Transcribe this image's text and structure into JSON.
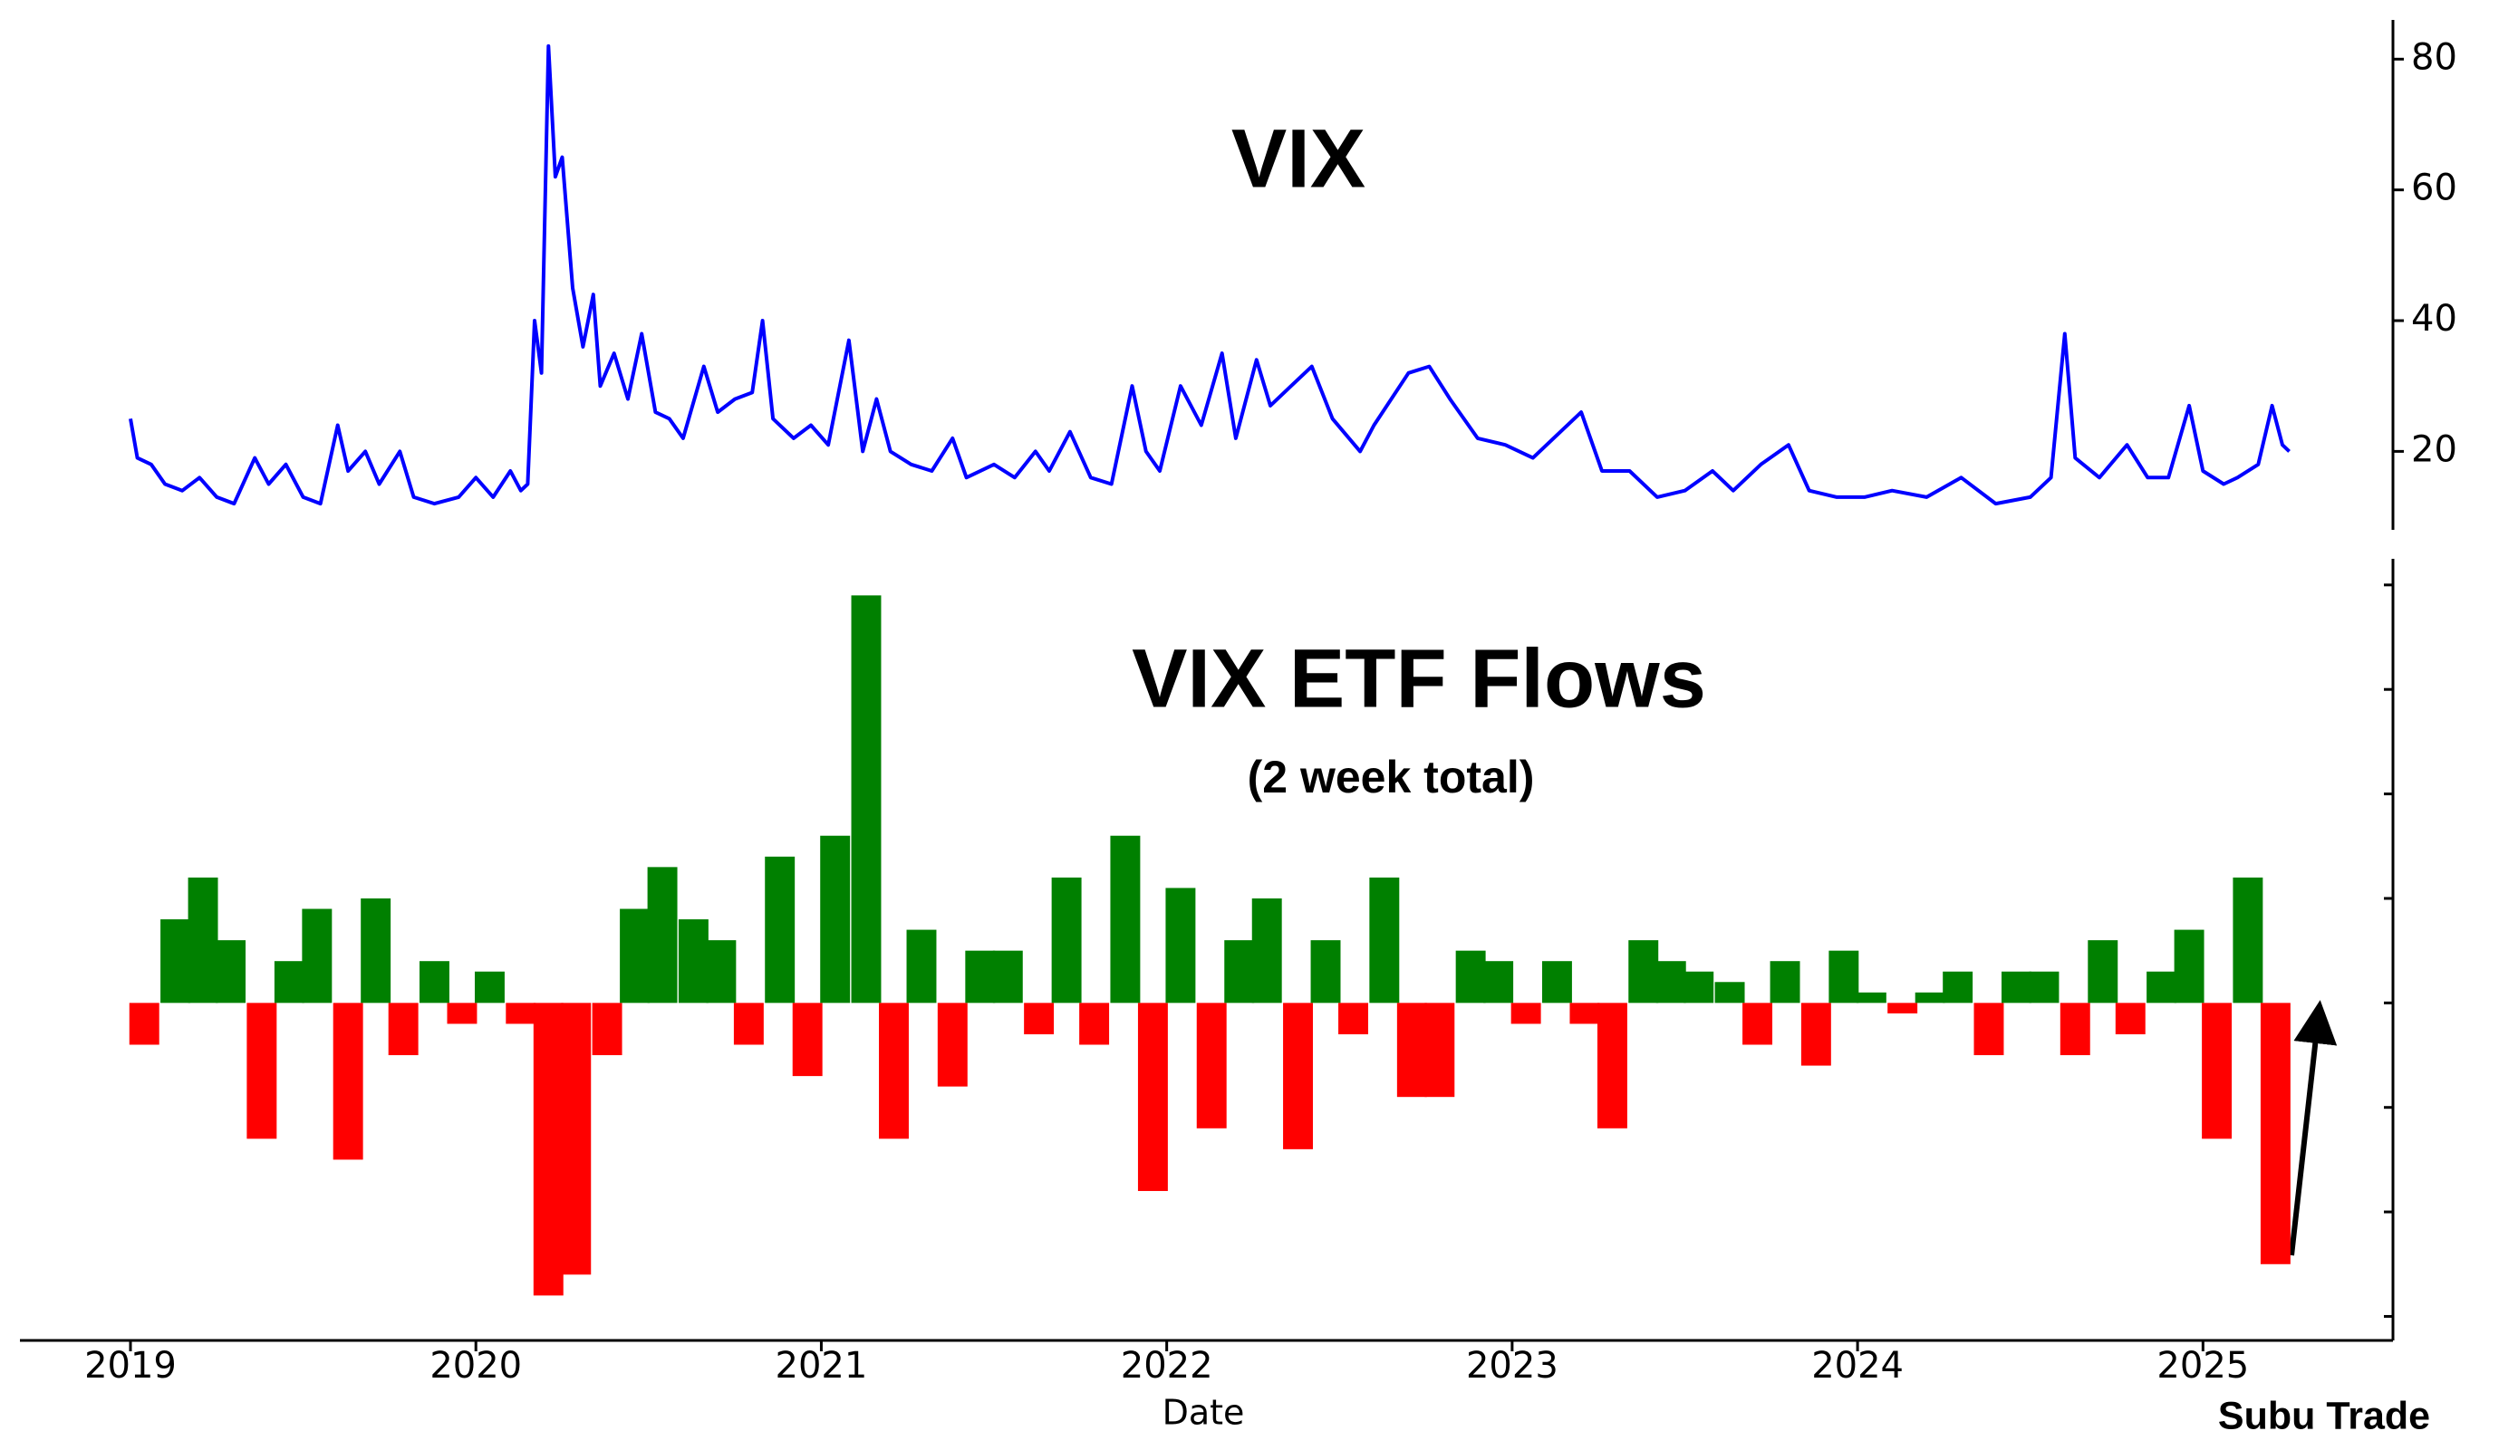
{
  "chart_data": [
    {
      "type": "line",
      "title": "VIX",
      "y_axis_side": "right",
      "xlim": [
        2018.68,
        2025.55
      ],
      "ylim": [
        8,
        86
      ],
      "yticks": [
        20,
        40,
        60,
        80
      ],
      "x": [
        2019.0,
        2019.02,
        2019.06,
        2019.1,
        2019.15,
        2019.2,
        2019.25,
        2019.3,
        2019.36,
        2019.4,
        2019.45,
        2019.5,
        2019.55,
        2019.6,
        2019.63,
        2019.68,
        2019.72,
        2019.78,
        2019.82,
        2019.88,
        2019.95,
        2020.0,
        2020.05,
        2020.1,
        2020.13,
        2020.15,
        2020.17,
        2020.19,
        2020.21,
        2020.23,
        2020.25,
        2020.28,
        2020.31,
        2020.34,
        2020.36,
        2020.4,
        2020.44,
        2020.48,
        2020.52,
        2020.56,
        2020.6,
        2020.66,
        2020.7,
        2020.75,
        2020.8,
        2020.83,
        2020.86,
        2020.92,
        2020.97,
        2021.02,
        2021.08,
        2021.12,
        2021.16,
        2021.2,
        2021.26,
        2021.32,
        2021.38,
        2021.42,
        2021.5,
        2021.56,
        2021.62,
        2021.66,
        2021.72,
        2021.78,
        2021.84,
        2021.9,
        2021.94,
        2021.98,
        2022.04,
        2022.1,
        2022.16,
        2022.2,
        2022.26,
        2022.3,
        2022.36,
        2022.42,
        2022.48,
        2022.56,
        2022.6,
        2022.7,
        2022.76,
        2022.82,
        2022.9,
        2022.98,
        2023.06,
        2023.12,
        2023.2,
        2023.26,
        2023.34,
        2023.42,
        2023.5,
        2023.58,
        2023.64,
        2023.72,
        2023.8,
        2023.86,
        2023.94,
        2024.02,
        2024.1,
        2024.2,
        2024.3,
        2024.4,
        2024.5,
        2024.56,
        2024.6,
        2024.63,
        2024.7,
        2024.78,
        2024.84,
        2024.9,
        2024.96,
        2025.0,
        2025.06,
        2025.1,
        2025.16,
        2025.2,
        2025.23,
        2025.25
      ],
      "series": [
        {
          "name": "VIX",
          "color": "#0000ff",
          "values": [
            25,
            19,
            18,
            15,
            14,
            16,
            13,
            12,
            19,
            15,
            18,
            13,
            12,
            24,
            17,
            20,
            15,
            20,
            13,
            12,
            13,
            16,
            13,
            17,
            14,
            15,
            40,
            32,
            82,
            62,
            65,
            45,
            36,
            44,
            30,
            35,
            28,
            38,
            26,
            25,
            22,
            33,
            26,
            28,
            29,
            40,
            25,
            22,
            24,
            21,
            37,
            20,
            28,
            20,
            18,
            17,
            22,
            16,
            18,
            16,
            20,
            17,
            23,
            16,
            15,
            30,
            20,
            17,
            30,
            24,
            35,
            22,
            34,
            27,
            30,
            33,
            25,
            20,
            24,
            32,
            33,
            28,
            22,
            21,
            19,
            22,
            26,
            17,
            17,
            13,
            14,
            17,
            14,
            18,
            21,
            14,
            13,
            13,
            14,
            13,
            16,
            12,
            13,
            16,
            38,
            19,
            16,
            21,
            16,
            16,
            27,
            17,
            15,
            16,
            18,
            27,
            21,
            20
          ]
        }
      ]
    },
    {
      "type": "bar",
      "title": "VIX ETF Flows",
      "subtitle": "(2 week total)",
      "xlabel": "Date",
      "y_axis_side": "right",
      "positive_color": "#008000",
      "negative_color": "#ff0000",
      "xlim": [
        2018.68,
        2025.55
      ],
      "xticks": [
        2019,
        2020,
        2021,
        2022,
        2023,
        2024,
        2025
      ],
      "ylim": [
        -3.23,
        4.25
      ],
      "yticks": [
        -3,
        -2,
        -1,
        0,
        1,
        2,
        3,
        4
      ],
      "x": [
        2019.04,
        2019.13,
        2019.21,
        2019.29,
        2019.38,
        2019.46,
        2019.54,
        2019.63,
        2019.71,
        2019.79,
        2019.88,
        2019.96,
        2020.04,
        2020.13,
        2020.21,
        2020.29,
        2020.38,
        2020.46,
        2020.54,
        2020.63,
        2020.71,
        2020.79,
        2020.88,
        2020.96,
        2021.04,
        2021.13,
        2021.21,
        2021.29,
        2021.38,
        2021.46,
        2021.54,
        2021.63,
        2021.71,
        2021.79,
        2021.88,
        2021.96,
        2022.04,
        2022.13,
        2022.21,
        2022.29,
        2022.38,
        2022.46,
        2022.54,
        2022.63,
        2022.71,
        2022.79,
        2022.88,
        2022.96,
        2023.04,
        2023.13,
        2023.21,
        2023.29,
        2023.38,
        2023.46,
        2023.54,
        2023.63,
        2023.71,
        2023.79,
        2023.88,
        2023.96,
        2024.04,
        2024.13,
        2024.21,
        2024.29,
        2024.38,
        2024.46,
        2024.54,
        2024.63,
        2024.71,
        2024.79,
        2024.88,
        2024.96,
        2025.04,
        2025.13,
        2025.21
      ],
      "values": [
        -0.4,
        0.8,
        1.2,
        0.6,
        -1.3,
        0.4,
        0.9,
        -1.5,
        1.0,
        -0.5,
        0.4,
        -0.2,
        0.3,
        -0.2,
        -2.8,
        -2.6,
        -0.5,
        0.9,
        1.3,
        0.8,
        0.6,
        -0.4,
        1.4,
        -0.7,
        1.6,
        3.9,
        -1.3,
        0.7,
        -0.8,
        0.5,
        0.5,
        -0.3,
        1.2,
        -0.4,
        1.6,
        -1.8,
        1.1,
        -1.2,
        0.6,
        1.0,
        -1.4,
        0.6,
        -0.3,
        1.2,
        -0.9,
        -0.9,
        0.5,
        0.4,
        -0.2,
        0.4,
        -0.2,
        -1.2,
        0.6,
        0.4,
        0.3,
        0.2,
        -0.4,
        0.4,
        -0.6,
        0.5,
        0.1,
        -0.1,
        0.1,
        0.3,
        -0.5,
        0.3,
        0.3,
        -0.5,
        0.6,
        -0.3,
        0.3,
        0.7,
        -1.3,
        1.2,
        -2.5
      ]
    }
  ],
  "source": "Subu Trade"
}
